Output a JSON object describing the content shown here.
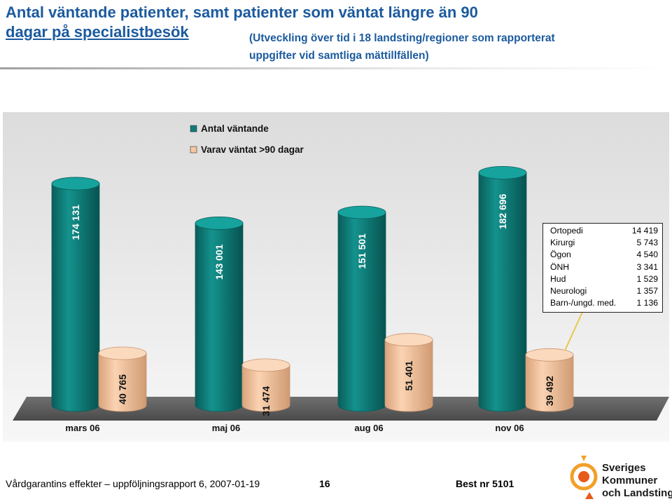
{
  "header": {
    "title_line1": "Antal väntande patienter, samt patienter som väntat längre än 90",
    "title_line2": "dagar på specialistbesök",
    "subtitle_line1": "(Utveckling över tid i 18 landsting/regioner som rapporterat",
    "subtitle_line2": "uppgifter vid samtliga mättillfällen)"
  },
  "colors": {
    "teal": "#0e7c78",
    "peach": "#f6c7a0",
    "title_blue": "#1b5a9e"
  },
  "chart_data": {
    "type": "bar",
    "categories": [
      "mars 06",
      "maj 06",
      "aug 06",
      "nov 06"
    ],
    "series": [
      {
        "name": "Antal väntande",
        "values": [
          174131,
          143001,
          151501,
          182696
        ],
        "labels": [
          "174 131",
          "143 001",
          "151 501",
          "182 696"
        ]
      },
      {
        "name": "Varav väntat >90 dagar",
        "values": [
          40765,
          31474,
          51401,
          39492
        ],
        "labels": [
          "40 765",
          "31 474",
          "51 401",
          "39 492"
        ]
      }
    ],
    "ylim": [
      0,
      200000
    ],
    "legend_position": "top-center",
    "annotations": [
      {
        "label": "Ortopedi",
        "value": "14 419"
      },
      {
        "label": "Kirurgi",
        "value": "5 743"
      },
      {
        "label": "Ögon",
        "value": "4 540"
      },
      {
        "label": "ÖNH",
        "value": "3 341"
      },
      {
        "label": "Hud",
        "value": "1 529"
      },
      {
        "label": "Neurologi",
        "value": "1 357"
      },
      {
        "label": "Barn-/ungd. med.",
        "value": "1 136"
      }
    ]
  },
  "footer": {
    "report": "Vårdgarantins effekter – uppföljningsrapport 6, 2007-01-19",
    "page": "16",
    "best": "Best nr 5101",
    "logo_line1": "Sveriges",
    "logo_line2": "Kommuner",
    "logo_line3": "och Landsting"
  }
}
